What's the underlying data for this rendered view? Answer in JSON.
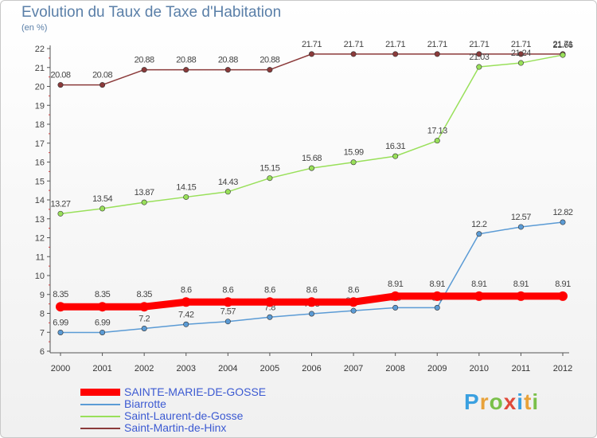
{
  "chart_data": {
    "type": "line",
    "title": "Evolution du Taux de Taxe d'Habitation",
    "subtitle": "(en %)",
    "x": [
      "2000",
      "2001",
      "2002",
      "2003",
      "2004",
      "2005",
      "2006",
      "2007",
      "2008",
      "2009",
      "2010",
      "2011",
      "2012"
    ],
    "ylim": [
      6,
      22
    ],
    "yticks": [
      6,
      7,
      8,
      9,
      10,
      11,
      12,
      13,
      14,
      15,
      16,
      17,
      18,
      19,
      20,
      21,
      22
    ],
    "grid": false,
    "legend_position": "bottom-left",
    "series": [
      {
        "name": "SAINTE-MARIE-DE-GOSSE",
        "color": "#ff0000",
        "values": [
          8.35,
          8.35,
          8.35,
          8.6,
          8.6,
          8.6,
          8.6,
          8.6,
          8.91,
          8.91,
          8.91,
          8.91,
          8.91
        ],
        "labels": [
          "8.35",
          "8.35",
          "8.35",
          "8.6",
          "8.6",
          "8.6",
          "8.6",
          "8.6",
          "8.91",
          "8.91",
          "8.91",
          "8.91",
          "8.91"
        ]
      },
      {
        "name": "Biarrotte",
        "color": "#5b9bd5",
        "values": [
          6.99,
          6.99,
          7.2,
          7.42,
          7.57,
          7.8,
          7.98,
          8.14,
          8.3,
          8.3,
          12.2,
          12.57,
          12.82
        ],
        "labels": [
          "6.99",
          "6.99",
          "7.2",
          "7.42",
          "7.57",
          "7.8",
          "7.98",
          "8.14",
          "8.3",
          "8.3",
          "12.2",
          "12.57",
          "12.82"
        ]
      },
      {
        "name": "Saint-Laurent-de-Gosse",
        "color": "#99e05a",
        "values": [
          13.27,
          13.54,
          13.87,
          14.15,
          14.43,
          15.15,
          15.68,
          15.99,
          16.31,
          17.13,
          21.03,
          21.24,
          21.66
        ],
        "labels": [
          "13.27",
          "13.54",
          "13.87",
          "14.15",
          "14.43",
          "15.15",
          "15.68",
          "15.99",
          "16.31",
          "17.13",
          "21.03",
          "21.24",
          "21.66"
        ]
      },
      {
        "name": "Saint-Martin-de-Hinx",
        "color": "#8b3a3a",
        "values": [
          20.08,
          20.08,
          20.88,
          20.88,
          20.88,
          20.88,
          21.71,
          21.71,
          21.71,
          21.71,
          21.71,
          21.71,
          21.71
        ],
        "labels": [
          "20.08",
          "20.08",
          "20.88",
          "20.88",
          "20.88",
          "20.88",
          "21.71",
          "21.71",
          "21.71",
          "21.71",
          "21.71",
          "21.71",
          "21.71"
        ]
      }
    ]
  },
  "branding": {
    "logo_letters": [
      "P",
      "r",
      "o",
      "x",
      "i",
      "t",
      "i"
    ],
    "logo_colors": [
      "#3aa0e0",
      "#e8a23a",
      "#7ac04a",
      "#e04a3a",
      "#3aa0e0",
      "#e8a23a",
      "#7ac04a"
    ]
  }
}
